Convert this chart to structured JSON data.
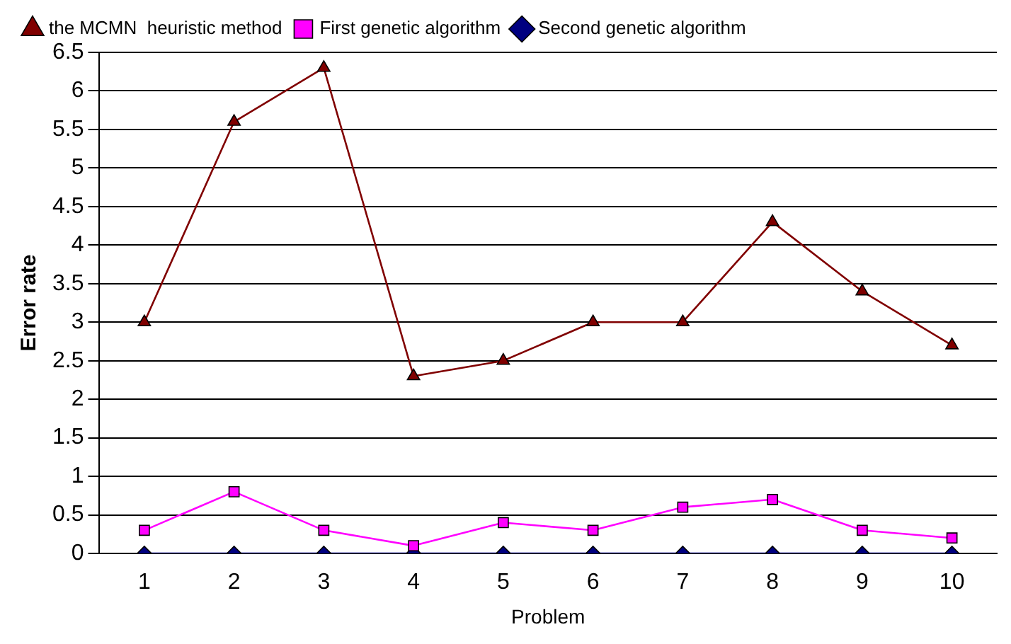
{
  "chart_data": {
    "type": "line",
    "xlabel": "Problem",
    "ylabel": "Error rate",
    "categories": [
      "1",
      "2",
      "3",
      "4",
      "5",
      "6",
      "7",
      "8",
      "9",
      "10"
    ],
    "series": [
      {
        "name": "the MCMN  heuristic method",
        "color": "#800000",
        "marker": "triangle",
        "values": [
          3,
          5.6,
          6.3,
          2.3,
          2.5,
          3,
          3,
          4.3,
          3.4,
          2.7
        ]
      },
      {
        "name": "First genetic algorithm",
        "color": "#ff00ff",
        "marker": "square",
        "values": [
          0.3,
          0.8,
          0.3,
          0.1,
          0.4,
          0.3,
          0.6,
          0.7,
          0.3,
          0.2
        ]
      },
      {
        "name": "Second genetic algorithm",
        "color": "#000080",
        "marker": "diamond",
        "values": [
          0,
          0,
          0,
          0,
          0,
          0,
          0,
          0,
          0,
          0
        ]
      }
    ],
    "ylim": [
      0,
      6.5
    ],
    "yticks": [
      0,
      0.5,
      1,
      1.5,
      2,
      2.5,
      3,
      3.5,
      4,
      4.5,
      5,
      5.5,
      6,
      6.5
    ],
    "grid": "y",
    "legend": "top",
    "line_style": "solid"
  }
}
